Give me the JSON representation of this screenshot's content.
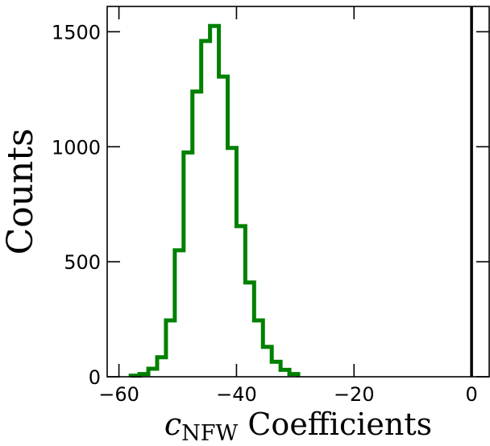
{
  "chart_data": {
    "type": "histogram",
    "xlabel_main": "c",
    "xlabel_sub": "NFW",
    "xlabel_rest": " Coefficients",
    "ylabel": "Counts",
    "xlim": [
      -62,
      3
    ],
    "ylim": [
      0,
      1610
    ],
    "x_ticks": [
      -60,
      -40,
      -20,
      0
    ],
    "x_tick_labels": [
      "−60",
      "−40",
      "−20",
      "0"
    ],
    "y_ticks": [
      0,
      500,
      1000,
      1500
    ],
    "y_tick_labels": [
      "0",
      "500",
      "1000",
      "1500"
    ],
    "bin_edges": [
      -58,
      -56.5,
      -55,
      -53.5,
      -52,
      -50.5,
      -49,
      -47.5,
      -46,
      -44.5,
      -43,
      -41.5,
      -40,
      -38.5,
      -37,
      -35.5,
      -34,
      -32.5,
      -31,
      -29.5
    ],
    "counts": [
      5,
      12,
      35,
      85,
      245,
      550,
      975,
      1240,
      1460,
      1525,
      1305,
      995,
      655,
      410,
      245,
      130,
      65,
      30,
      12
    ],
    "series_color": "#008000",
    "vertical_line_x": 0,
    "vertical_line_color": "#000000",
    "grid": false
  }
}
